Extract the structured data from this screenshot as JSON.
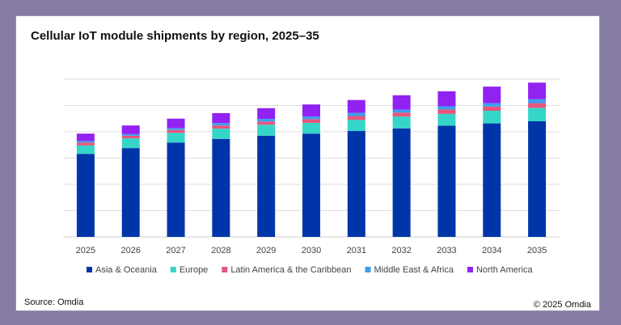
{
  "chart_data": {
    "type": "bar",
    "stacked": true,
    "title": "Cellular IoT module shipments by region, 2025–35",
    "xlabel": "",
    "ylabel": "",
    "ylim": [
      0,
      6
    ],
    "y_tick_labels_shown": false,
    "grid": true,
    "legend_placement": "bottom",
    "categories": [
      "2025",
      "2026",
      "2027",
      "2028",
      "2029",
      "2030",
      "2031",
      "2032",
      "2033",
      "2034",
      "2035"
    ],
    "series": [
      {
        "name": "Asia & Oceania",
        "color": "#0035a9",
        "values": [
          3.16,
          3.38,
          3.59,
          3.73,
          3.85,
          3.93,
          4.03,
          4.13,
          4.23,
          4.32,
          4.4
        ]
      },
      {
        "name": "Europe",
        "color": "#35d6c9",
        "values": [
          0.32,
          0.37,
          0.37,
          0.39,
          0.42,
          0.41,
          0.42,
          0.45,
          0.45,
          0.48,
          0.51
        ]
      },
      {
        "name": "Latin America & the Caribbean",
        "color": "#e8557c",
        "values": [
          0.11,
          0.1,
          0.11,
          0.12,
          0.12,
          0.14,
          0.15,
          0.15,
          0.17,
          0.16,
          0.18
        ]
      },
      {
        "name": "Middle East & Africa",
        "color": "#3a9ff0",
        "values": [
          0.06,
          0.06,
          0.07,
          0.09,
          0.1,
          0.1,
          0.12,
          0.11,
          0.12,
          0.13,
          0.15
        ]
      },
      {
        "name": "North America",
        "color": "#9122f2",
        "values": [
          0.28,
          0.33,
          0.36,
          0.38,
          0.41,
          0.46,
          0.49,
          0.55,
          0.57,
          0.63,
          0.63
        ]
      }
    ]
  },
  "footer": {
    "source": "Source: Omdia",
    "copyright": "© 2025 Omdia"
  }
}
